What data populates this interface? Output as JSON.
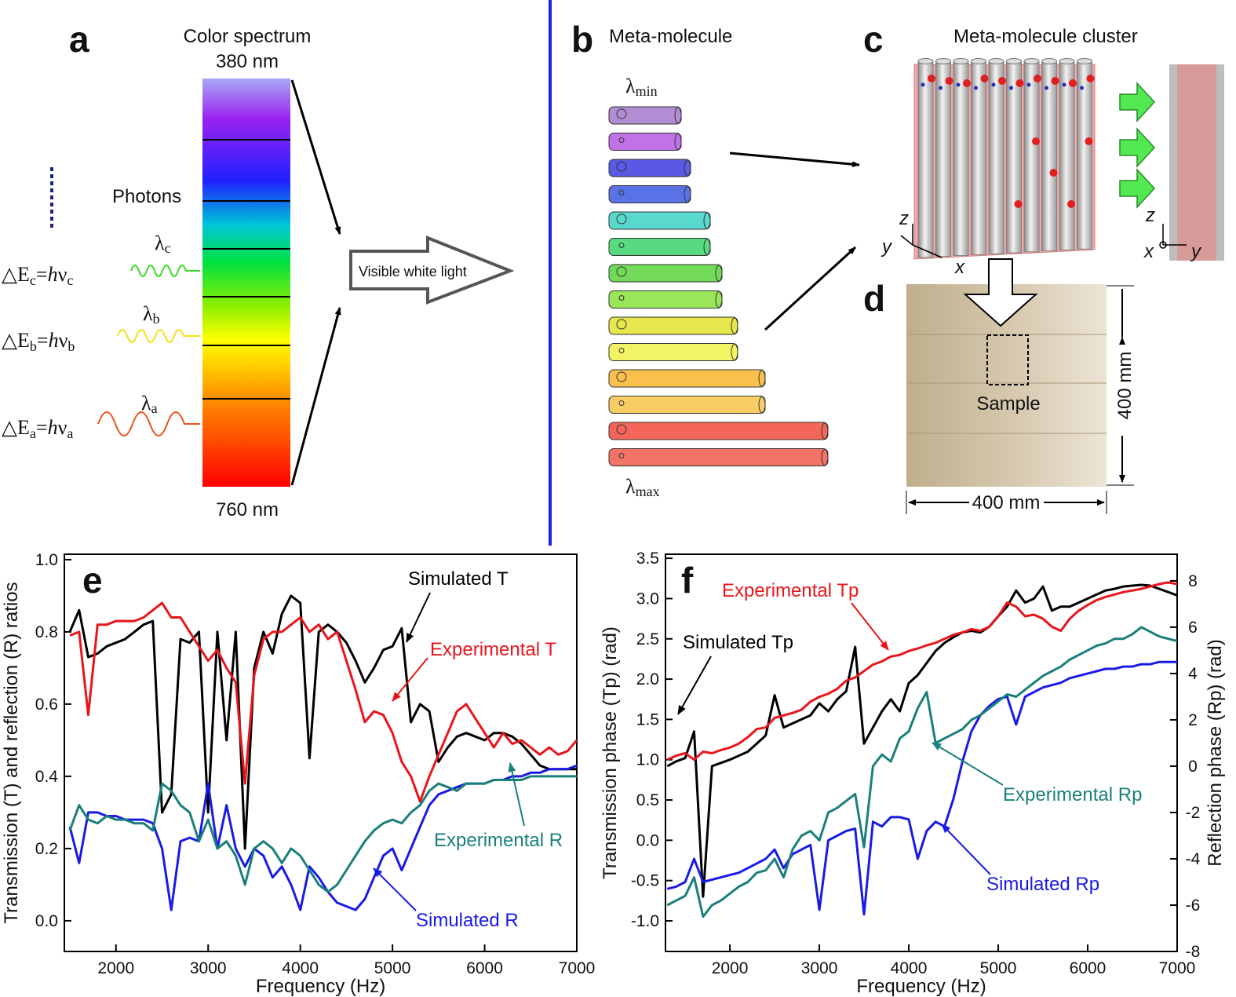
{
  "panel_a": {
    "label": "a",
    "title": "Color spectrum",
    "top_wavelength": "380 nm",
    "bottom_wavelength": "760 nm",
    "photons": "Photons",
    "output": "Visible white light",
    "waves": [
      {
        "lambda": [
          "λ",
          "c"
        ],
        "energy": [
          "△E",
          "c",
          "=",
          "h",
          "ν",
          "c"
        ]
      },
      {
        "lambda": [
          "λ",
          "b"
        ],
        "energy": [
          "△E",
          "b",
          "=",
          "h",
          "ν",
          "b"
        ]
      },
      {
        "lambda": [
          "λ",
          "a"
        ],
        "energy": [
          "△E",
          "a",
          "=",
          "h",
          "ν",
          "a"
        ]
      }
    ]
  },
  "panel_b": {
    "label": "b",
    "title": "Meta-molecule",
    "min": [
      "λ",
      "min"
    ],
    "max": [
      "λ",
      "max"
    ]
  },
  "panel_c": {
    "label": "c",
    "title": "Meta-molecule cluster",
    "axes_front": [
      "z",
      "y",
      "x"
    ],
    "axes_side": [
      "z",
      "x",
      "y"
    ]
  },
  "panel_d": {
    "label": "d",
    "caption": "Sample",
    "width": "400 mm",
    "height": "400 mm"
  },
  "chart_data": [
    {
      "type": "line",
      "panel_label": "e",
      "xlabel": "Frequency (Hz)",
      "ylabel": "Transmission (T) and reflection (R) ratios",
      "xlim": [
        1440,
        7000
      ],
      "xticks": [
        2000,
        3000,
        4000,
        5000,
        6000,
        7000
      ],
      "ylim": [
        -0.085,
        1.015
      ],
      "yticks": [
        {
          "value": 0,
          "label": "0.0"
        },
        0.2,
        0.4,
        0.6,
        0.8,
        {
          "value": 1,
          "label": "1.0"
        }
      ],
      "x": [
        1500,
        1600,
        1700,
        1800,
        1900,
        2000,
        2100,
        2200,
        2300,
        2400,
        2500,
        2600,
        2700,
        2800,
        2900,
        3000,
        3100,
        3200,
        3300,
        3400,
        3500,
        3600,
        3700,
        3800,
        3900,
        4000,
        4100,
        4200,
        4300,
        4400,
        4500,
        4600,
        4700,
        4800,
        4900,
        5000,
        5100,
        5200,
        5300,
        5400,
        5500,
        5600,
        5700,
        5800,
        5900,
        6000,
        6100,
        6200,
        6300,
        6400,
        6500,
        6600,
        6700,
        6800,
        6900,
        7000
      ],
      "series": [
        {
          "name": "Simulated T",
          "color": "#000000",
          "values": [
            0.8,
            0.86,
            0.73,
            0.74,
            0.76,
            0.77,
            0.78,
            0.8,
            0.82,
            0.83,
            0.3,
            0.35,
            0.78,
            0.77,
            0.8,
            0.3,
            0.8,
            0.5,
            0.8,
            0.2,
            0.7,
            0.8,
            0.74,
            0.85,
            0.9,
            0.88,
            0.45,
            0.8,
            0.82,
            0.8,
            0.77,
            0.72,
            0.66,
            0.7,
            0.75,
            0.76,
            0.81,
            0.55,
            0.6,
            0.58,
            0.44,
            0.48,
            0.51,
            0.52,
            0.51,
            0.5,
            0.52,
            0.52,
            0.51,
            0.49,
            0.46,
            0.43,
            0.42,
            0.42,
            0.42,
            0.42
          ]
        },
        {
          "name": "Experimental T",
          "color": "#e8151b",
          "values": [
            0.79,
            0.8,
            0.57,
            0.82,
            0.82,
            0.83,
            0.83,
            0.83,
            0.84,
            0.86,
            0.88,
            0.84,
            0.84,
            0.8,
            0.76,
            0.72,
            0.75,
            0.7,
            0.66,
            0.38,
            0.68,
            0.78,
            0.8,
            0.8,
            0.82,
            0.84,
            0.8,
            0.82,
            0.78,
            0.8,
            0.72,
            0.64,
            0.55,
            0.58,
            0.57,
            0.52,
            0.44,
            0.4,
            0.33,
            0.4,
            0.46,
            0.52,
            0.58,
            0.6,
            0.56,
            0.52,
            0.48,
            0.52,
            0.49,
            0.5,
            0.48,
            0.46,
            0.48,
            0.46,
            0.47,
            0.5
          ]
        },
        {
          "name": "Simulated R",
          "color": "#1a1ae6",
          "values": [
            0.26,
            0.16,
            0.3,
            0.3,
            0.29,
            0.29,
            0.28,
            0.28,
            0.28,
            0.27,
            0.2,
            0.03,
            0.22,
            0.23,
            0.22,
            0.38,
            0.2,
            0.32,
            0.2,
            0.15,
            0.2,
            0.18,
            0.12,
            0.15,
            0.1,
            0.03,
            0.15,
            0.12,
            0.08,
            0.05,
            0.04,
            0.03,
            0.06,
            0.12,
            0.18,
            0.2,
            0.14,
            0.2,
            0.26,
            0.32,
            0.35,
            0.36,
            0.37,
            0.38,
            0.38,
            0.38,
            0.39,
            0.39,
            0.4,
            0.4,
            0.41,
            0.41,
            0.42,
            0.42,
            0.42,
            0.43
          ]
        },
        {
          "name": "Experimental R",
          "color": "#1a7f7a",
          "values": [
            0.25,
            0.32,
            0.28,
            0.27,
            0.29,
            0.28,
            0.28,
            0.27,
            0.27,
            0.25,
            0.38,
            0.36,
            0.32,
            0.3,
            0.22,
            0.28,
            0.2,
            0.22,
            0.18,
            0.1,
            0.2,
            0.22,
            0.2,
            0.16,
            0.2,
            0.18,
            0.14,
            0.1,
            0.08,
            0.1,
            0.14,
            0.18,
            0.22,
            0.25,
            0.27,
            0.28,
            0.27,
            0.3,
            0.32,
            0.36,
            0.38,
            0.37,
            0.36,
            0.38,
            0.38,
            0.38,
            0.39,
            0.39,
            0.39,
            0.39,
            0.4,
            0.4,
            0.4,
            0.4,
            0.4,
            0.4
          ]
        }
      ]
    },
    {
      "type": "line",
      "panel_label": "f",
      "xlabel": "Frequency (Hz)",
      "ylabel": "Transmission phase (Tp) (rad)",
      "y2label": "Reflection phase (Rp) (rad)",
      "xlim": [
        1280,
        7000
      ],
      "xticks": [
        2000,
        3000,
        4000,
        5000,
        6000,
        7000
      ],
      "ylim": [
        -1.38,
        3.55
      ],
      "yticks": [
        {
          "value": -1,
          "label": "-1.0"
        },
        -0.5,
        {
          "value": 0,
          "label": "0.0"
        },
        0.5,
        {
          "value": 1,
          "label": "1.0"
        },
        1.5,
        {
          "value": 2,
          "label": "2.0"
        },
        2.5,
        {
          "value": 3,
          "label": "3.0"
        },
        3.5
      ],
      "y2lim": [
        -8,
        9.15
      ],
      "y2ticks": [
        -8,
        -6,
        -4,
        -2,
        0,
        2,
        4,
        6,
        8
      ],
      "x": [
        1300,
        1400,
        1500,
        1600,
        1700,
        1800,
        1900,
        2000,
        2100,
        2200,
        2300,
        2400,
        2500,
        2600,
        2700,
        2800,
        2900,
        3000,
        3100,
        3200,
        3300,
        3400,
        3500,
        3600,
        3700,
        3800,
        3900,
        4000,
        4100,
        4200,
        4300,
        4400,
        4500,
        4600,
        4700,
        4800,
        4900,
        5000,
        5100,
        5200,
        5300,
        5400,
        5500,
        5600,
        5700,
        5800,
        5900,
        6000,
        6100,
        6200,
        6300,
        6400,
        6500,
        6600,
        6700,
        6800,
        6900,
        7000
      ],
      "series": [
        {
          "name": "Simulated Tp",
          "color": "#000000",
          "values": [
            0.92,
            0.98,
            1.02,
            1.35,
            -0.7,
            0.92,
            0.96,
            1.0,
            1.05,
            1.1,
            1.2,
            1.3,
            1.8,
            1.4,
            1.45,
            1.5,
            1.55,
            1.7,
            1.6,
            1.75,
            1.85,
            2.4,
            1.2,
            1.4,
            1.6,
            1.75,
            1.6,
            1.95,
            2.05,
            2.2,
            2.35,
            2.45,
            2.52,
            2.58,
            2.6,
            2.58,
            2.65,
            2.78,
            2.9,
            3.1,
            2.95,
            3.0,
            3.15,
            2.85,
            2.9,
            2.9,
            2.95,
            3.0,
            3.05,
            3.1,
            3.12,
            3.15,
            3.16,
            3.17,
            3.16,
            3.12,
            3.08,
            3.04
          ]
        },
        {
          "name": "Experimental Tp",
          "color": "#e8151b",
          "values": [
            1.0,
            1.05,
            1.08,
            1.0,
            1.1,
            1.08,
            1.12,
            1.15,
            1.2,
            1.28,
            1.38,
            1.4,
            1.52,
            1.55,
            1.58,
            1.62,
            1.72,
            1.78,
            1.82,
            1.88,
            1.98,
            2.02,
            2.1,
            2.18,
            2.22,
            2.28,
            2.3,
            2.35,
            2.38,
            2.42,
            2.45,
            2.5,
            2.55,
            2.58,
            2.62,
            2.6,
            2.65,
            2.78,
            2.95,
            2.9,
            2.78,
            2.8,
            2.75,
            2.65,
            2.6,
            2.75,
            2.85,
            2.92,
            2.98,
            3.02,
            3.05,
            3.08,
            3.1,
            3.12,
            3.15,
            3.18,
            3.2,
            3.18
          ]
        },
        {
          "name": "Simulated Rp",
          "color": "#1a1ae6",
          "axis": "y2",
          "values": [
            -5.3,
            -5.2,
            -5.0,
            -4.0,
            -5.0,
            -4.9,
            -4.8,
            -4.7,
            -4.6,
            -4.4,
            -4.2,
            -4.0,
            -3.6,
            -4.4,
            -3.8,
            -3.6,
            -3.4,
            -6.2,
            -3.2,
            -3.0,
            -2.8,
            -2.7,
            -6.4,
            -2.4,
            -2.6,
            -2.2,
            -2.2,
            -2.3,
            -4.0,
            -2.8,
            -2.4,
            -2.6,
            -1.4,
            0.2,
            1.5,
            2.2,
            2.6,
            2.9,
            3.0,
            1.8,
            3.0,
            3.2,
            3.4,
            3.5,
            3.6,
            3.8,
            3.9,
            4.0,
            4.1,
            4.2,
            4.2,
            4.3,
            4.3,
            4.4,
            4.4,
            4.5,
            4.5,
            4.5
          ]
        },
        {
          "name": "Experimental Rp",
          "color": "#1a7f7a",
          "axis": "y2",
          "values": [
            -6.0,
            -5.8,
            -5.6,
            -4.8,
            -6.5,
            -6.0,
            -5.8,
            -5.5,
            -5.2,
            -5.0,
            -4.6,
            -4.5,
            -4.0,
            -4.8,
            -3.6,
            -3.0,
            -2.8,
            -3.2,
            -2.0,
            -1.8,
            -1.5,
            -1.2,
            -3.5,
            0.0,
            0.5,
            0.2,
            1.2,
            1.5,
            2.5,
            3.2,
            1.0,
            1.2,
            1.4,
            1.6,
            2.0,
            2.2,
            2.5,
            2.8,
            3.1,
            3.0,
            3.3,
            3.6,
            3.9,
            4.1,
            4.3,
            4.6,
            4.8,
            5.0,
            5.2,
            5.3,
            5.5,
            5.5,
            5.7,
            6.0,
            5.8,
            5.6,
            5.5,
            5.4
          ]
        }
      ]
    }
  ]
}
